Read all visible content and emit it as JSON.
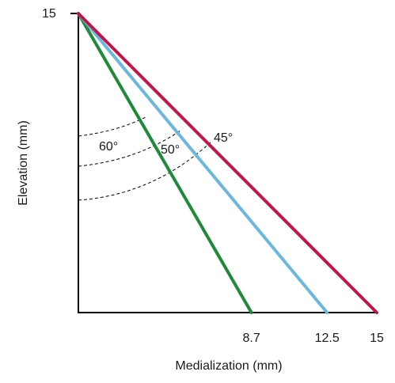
{
  "diagram": {
    "axes": {
      "x_title": "Medialization (mm)",
      "y_title": "Elevation (mm)",
      "y_tick": "15",
      "x_ticks": [
        "8.7",
        "12.5",
        "15"
      ]
    },
    "apex_elevation": 15,
    "lines": [
      {
        "angle_label": "60°",
        "medialization": 8.7,
        "color": "#1f8a3a"
      },
      {
        "angle_label": "50°",
        "medialization": 12.5,
        "color": "#6cb8dc"
      },
      {
        "angle_label": "45°",
        "medialization": 15,
        "color": "#c0164a"
      }
    ],
    "x_range": [
      0,
      15
    ],
    "y_range": [
      0,
      15
    ]
  }
}
